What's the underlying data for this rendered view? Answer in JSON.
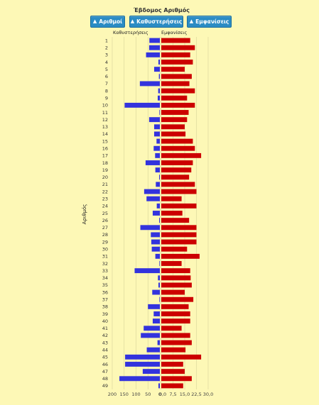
{
  "header": {
    "title": "Έβδομος Αριθμός"
  },
  "sort_buttons": [
    {
      "label": "Αριθμοί",
      "icon": "arrow-up-icon"
    },
    {
      "label": "Καθυστερήσεις",
      "icon": "arrow-up-icon"
    },
    {
      "label": "Εμφανίσεις",
      "icon": "arrow-up-icon"
    }
  ],
  "chart_data": {
    "type": "bar",
    "orientation": "horizontal-butterfly",
    "ylabel": "Αριθμός",
    "categories": [
      "1",
      "2",
      "3",
      "4",
      "5",
      "6",
      "7",
      "8",
      "9",
      "10",
      "11",
      "12",
      "13",
      "14",
      "15",
      "16",
      "17",
      "18",
      "19",
      "20",
      "21",
      "22",
      "23",
      "24",
      "25",
      "26",
      "27",
      "28",
      "29",
      "30",
      "31",
      "32",
      "33",
      "34",
      "35",
      "36",
      "37",
      "38",
      "39",
      "40",
      "41",
      "42",
      "43",
      "44",
      "45",
      "46",
      "47",
      "48",
      "49"
    ],
    "left_panel": {
      "title": "Καθυστερήσεις",
      "xlim": [
        200,
        0
      ],
      "ticks": [
        "200",
        "150",
        "100",
        "50",
        "0"
      ],
      "color": "#3333dd",
      "values": [
        44,
        45,
        58,
        6,
        24,
        4,
        84,
        7,
        9,
        148,
        2,
        45,
        24,
        24,
        14,
        26,
        20,
        60,
        19,
        3,
        17,
        66,
        56,
        13,
        30,
        3,
        82,
        38,
        36,
        34,
        19,
        2,
        106,
        8,
        6,
        32,
        2,
        50,
        26,
        30,
        68,
        80,
        10,
        55,
        146,
        146,
        72,
        170,
        6
      ]
    },
    "right_panel": {
      "title": "Εμφανίσεις",
      "xlim": [
        0,
        30
      ],
      "ticks": [
        "0,0",
        "7,5",
        "15,0",
        "22,5",
        "30,0"
      ],
      "color": "#cc0000",
      "values": [
        18.5,
        21.5,
        18.5,
        20.2,
        15.0,
        19.5,
        18.0,
        21.5,
        16.5,
        21.5,
        17.5,
        16.5,
        15.0,
        15.5,
        20.2,
        21.5,
        25.5,
        20.2,
        19.2,
        17.8,
        21.5,
        22.5,
        13.0,
        22.5,
        13.5,
        17.8,
        22.5,
        22.5,
        22.5,
        16.5,
        24.5,
        13.0,
        18.5,
        18.8,
        19.5,
        15.0,
        20.5,
        17.5,
        18.5,
        18.5,
        13.0,
        18.5,
        19.5,
        15.5,
        25.5,
        14.0,
        15.0,
        19.5,
        14.0
      ]
    },
    "grid": true
  }
}
